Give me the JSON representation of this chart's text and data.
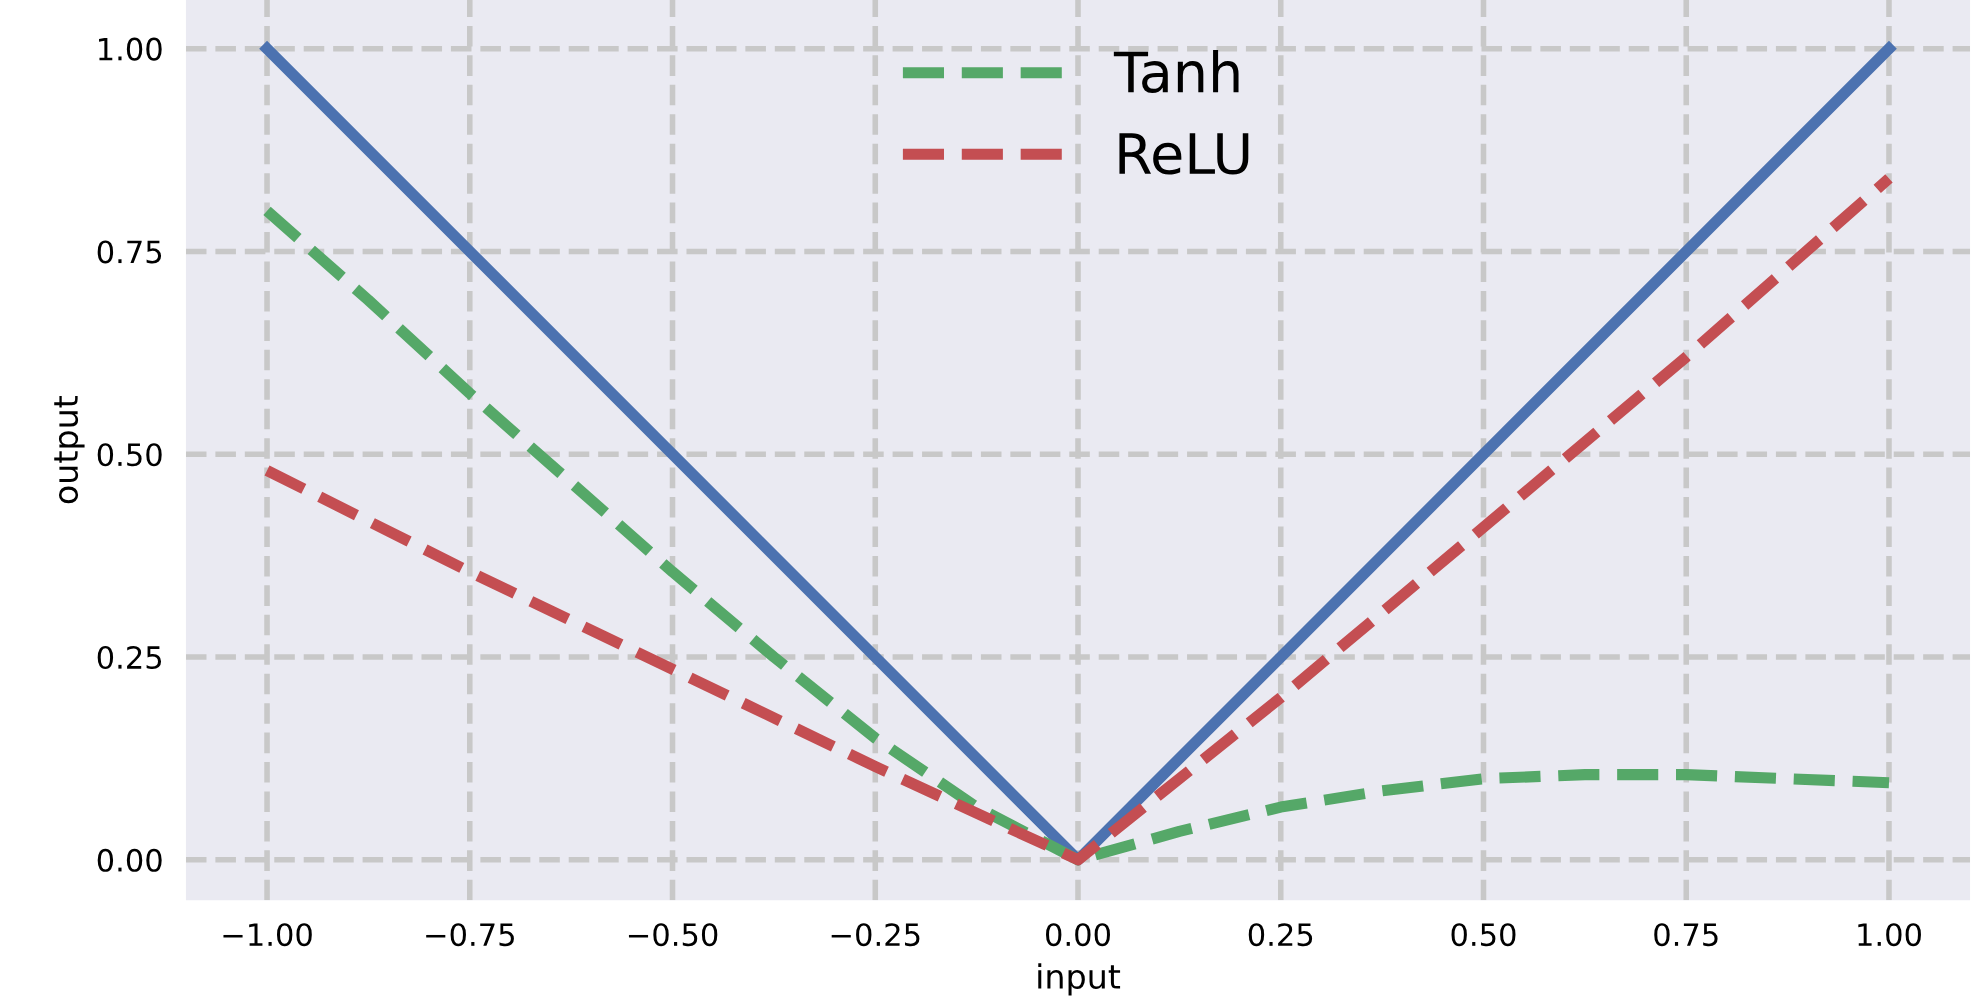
{
  "chart_data": {
    "type": "line",
    "xlabel": "input",
    "ylabel": "output",
    "xlim": [
      -1.1,
      1.1
    ],
    "ylim": [
      -0.05,
      1.06
    ],
    "xticks": [
      {
        "value": -1,
        "label": "−1.00"
      },
      {
        "value": -0.75,
        "label": "−0.75"
      },
      {
        "value": -0.5,
        "label": "−0.50"
      },
      {
        "value": -0.25,
        "label": "−0.25"
      },
      {
        "value": 0,
        "label": "0.00"
      },
      {
        "value": 0.25,
        "label": "0.25"
      },
      {
        "value": 0.5,
        "label": "0.50"
      },
      {
        "value": 0.75,
        "label": "0.75"
      },
      {
        "value": 1,
        "label": "1.00"
      }
    ],
    "yticks": [
      {
        "value": 0,
        "label": "0.00"
      },
      {
        "value": 0.25,
        "label": "0.25"
      },
      {
        "value": 0.5,
        "label": "0.50"
      },
      {
        "value": 0.75,
        "label": "0.75"
      },
      {
        "value": 1,
        "label": "1.00"
      }
    ],
    "grid": true,
    "legend": "top",
    "marker": "none",
    "series": [
      {
        "color": "#4c72b0",
        "line_style": "solid",
        "x": [
          -1,
          0,
          1
        ],
        "values": [
          1,
          0,
          1
        ]
      },
      {
        "name": "Tanh",
        "color": "#55a868",
        "line_style": "dashed",
        "x": [
          -1,
          -0.875,
          -0.75,
          -0.625,
          -0.5,
          -0.375,
          -0.25,
          -0.125,
          0,
          0.125,
          0.25,
          0.375,
          0.5,
          0.625,
          0.75,
          0.875,
          1
        ],
        "values": [
          0.8,
          0.69,
          0.575,
          0.465,
          0.355,
          0.25,
          0.15,
          0.065,
          0,
          0.035,
          0.065,
          0.085,
          0.1,
          0.105,
          0.105,
          0.1,
          0.095
        ]
      },
      {
        "name": "ReLU",
        "color": "#c44e52",
        "line_style": "dashed",
        "x": [
          -1,
          -0.75,
          -0.5,
          -0.25,
          0,
          0.25,
          0.5,
          0.75,
          1
        ],
        "values": [
          0.48,
          0.355,
          0.235,
          0.115,
          0,
          0.2,
          0.41,
          0.62,
          0.84
        ]
      }
    ]
  }
}
